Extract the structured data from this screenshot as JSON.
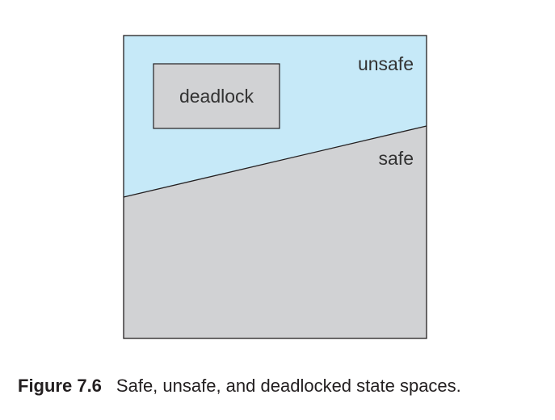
{
  "diagram": {
    "regions": {
      "unsafe": "unsafe",
      "safe": "safe",
      "deadlock": "deadlock"
    },
    "colors": {
      "unsafe": "#c6e9f8",
      "safe": "#d1d2d4",
      "deadlock": "#d1d2d4",
      "stroke": "#231f20"
    }
  },
  "caption": {
    "figure_number": "Figure 7.6",
    "text": "Safe, unsafe, and deadlocked state spaces."
  }
}
